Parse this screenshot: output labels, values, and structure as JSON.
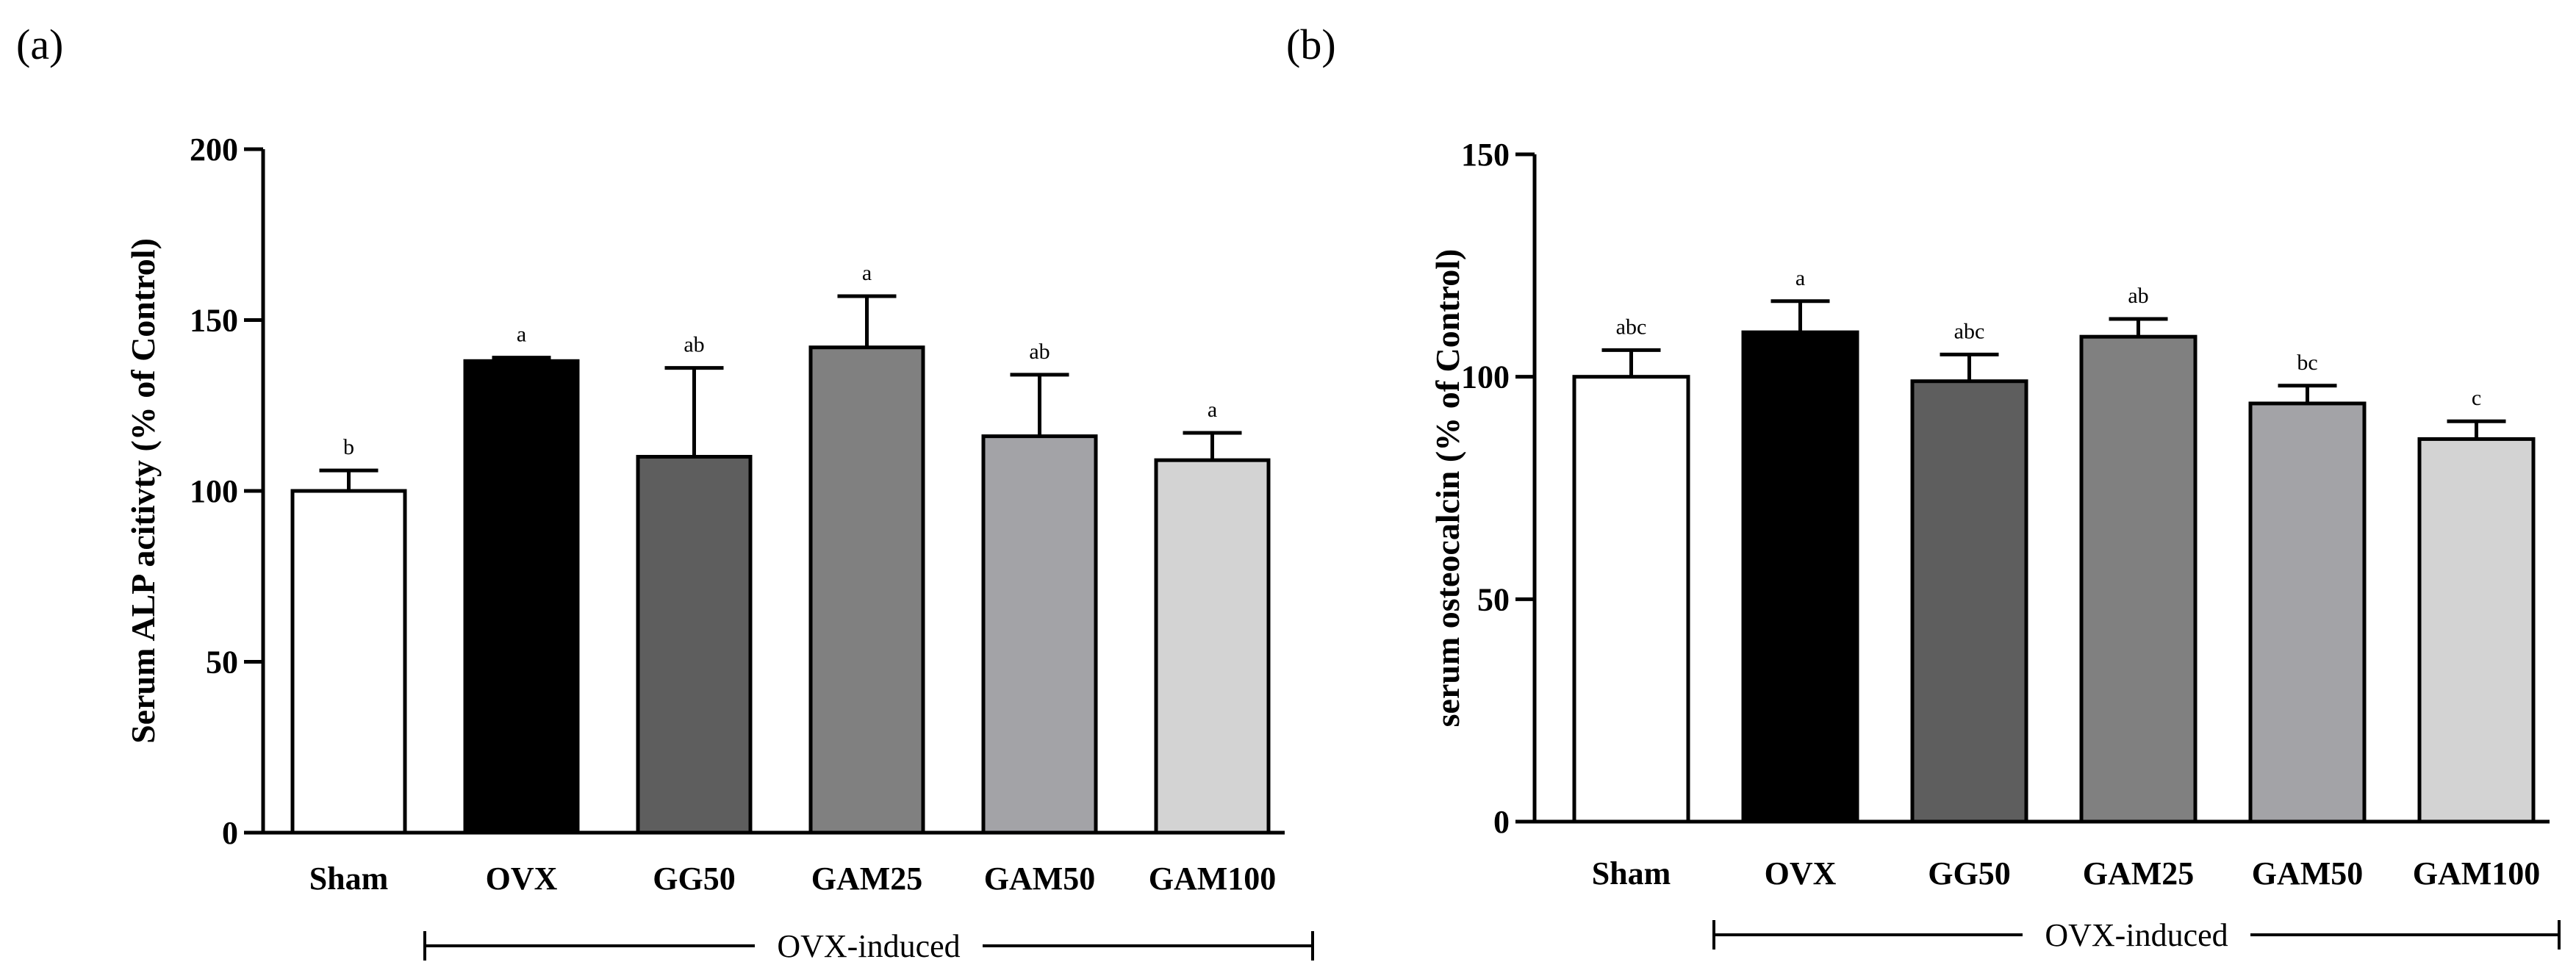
{
  "chart_data": [
    {
      "type": "bar",
      "panel_label": "(a)",
      "title": "",
      "xlabel": "",
      "ylabel": "Serum ALP acitivty (% of Control)",
      "ylim": [
        0,
        200
      ],
      "yticks": [
        0,
        50,
        100,
        150,
        200
      ],
      "ytick_labels": [
        "0",
        "50",
        "100",
        "150",
        "200"
      ],
      "categories": [
        "Sham",
        "OVX",
        "GG50",
        "GAM25",
        "GAM50",
        "GAM100"
      ],
      "values": [
        100,
        138,
        110,
        142,
        116,
        109
      ],
      "errors": [
        6,
        1,
        26,
        15,
        18,
        8
      ],
      "significance": [
        "b",
        "a",
        "ab",
        "a",
        "ab",
        "a"
      ],
      "bar_colors": [
        "#ffffff",
        "#000000",
        "#5e5e5e",
        "#808080",
        "#a3a3a7",
        "#d3d3d3"
      ],
      "group_label": "OVX-induced"
    },
    {
      "type": "bar",
      "panel_label": "(b)",
      "title": "",
      "xlabel": "",
      "ylabel": "serum osteocalcin (% of Control)",
      "ylim": [
        0,
        150
      ],
      "yticks": [
        0,
        50,
        100,
        150
      ],
      "ytick_labels": [
        "0",
        "50",
        "100",
        "150"
      ],
      "categories": [
        "Sham",
        "OVX",
        "GG50",
        "GAM25",
        "GAM50",
        "GAM100"
      ],
      "values": [
        100,
        110,
        99,
        109,
        94,
        86
      ],
      "errors": [
        6,
        7,
        6,
        4,
        4,
        4
      ],
      "significance": [
        "abc",
        "a",
        "abc",
        "ab",
        "bc",
        "c"
      ],
      "bar_colors": [
        "#ffffff",
        "#000000",
        "#5e5e5e",
        "#808080",
        "#a3a3a7",
        "#d3d3d3"
      ],
      "group_label": "OVX-induced"
    }
  ]
}
